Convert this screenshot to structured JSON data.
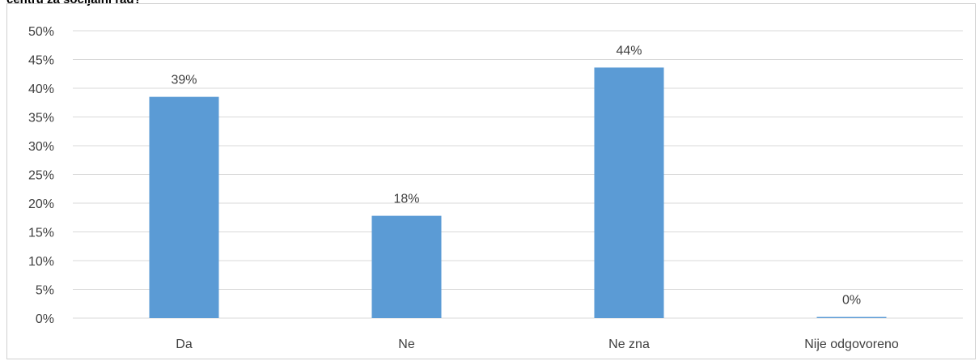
{
  "heading": "centru za socijalni rad?",
  "chart_data": {
    "type": "bar",
    "categories": [
      "Da",
      "Ne",
      "Ne zna",
      "Nije odgovoreno"
    ],
    "values": [
      38.5,
      17.8,
      43.6,
      0.2
    ],
    "data_labels": [
      "39%",
      "18%",
      "44%",
      "0%"
    ],
    "ylim": [
      0,
      50
    ],
    "yticks": [
      0,
      5,
      10,
      15,
      20,
      25,
      30,
      35,
      40,
      45,
      50
    ],
    "ytick_labels": [
      "0%",
      "5%",
      "10%",
      "15%",
      "20%",
      "25%",
      "30%",
      "35%",
      "40%",
      "45%",
      "50%"
    ],
    "grid": true,
    "legend": "none",
    "bar_color": "#5b9bd5",
    "grid_color": "#d9d9d9"
  }
}
